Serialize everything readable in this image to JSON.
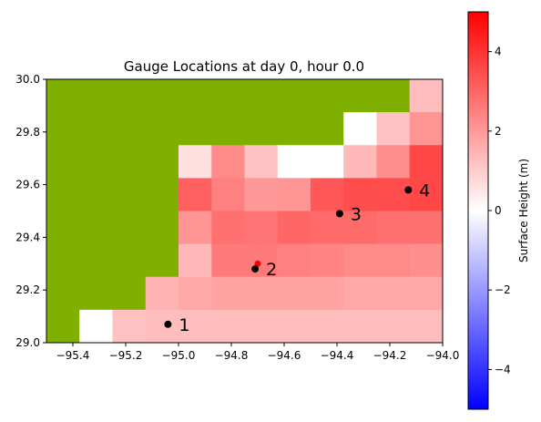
{
  "chart_data": {
    "type": "heatmap",
    "title": "Gauge Locations at day   0, hour 0.0",
    "xlim": [
      -95.5,
      -94.0
    ],
    "ylim": [
      29.0,
      30.0
    ],
    "xticks": [
      -95.4,
      -95.2,
      -95.0,
      -94.8,
      -94.6,
      -94.4,
      -94.2,
      -94.0
    ],
    "xtick_labels": [
      "−95.4",
      "−95.2",
      "−95.0",
      "−94.8",
      "−94.6",
      "−94.4",
      "−94.2",
      "−94.0"
    ],
    "yticks": [
      29.0,
      29.2,
      29.4,
      29.6,
      29.8,
      30.0
    ],
    "ytick_labels": [
      "29.0",
      "29.2",
      "29.4",
      "29.6",
      "29.8",
      "30.0"
    ],
    "grid": false,
    "land_color": "#7fb000",
    "cell_size_deg": 0.125,
    "grid_rows_note": "rows listed top (y 29.875-30.0) to bottom (y 29.0-29.125); columns west to east; null = land",
    "surface_height_grid": [
      [
        null,
        null,
        null,
        null,
        null,
        null,
        null,
        null,
        null,
        null,
        null,
        1.3
      ],
      [
        null,
        null,
        null,
        null,
        null,
        null,
        null,
        null,
        null,
        0.0,
        1.2,
        2.1
      ],
      [
        null,
        null,
        null,
        null,
        0.6,
        2.3,
        1.2,
        0.0,
        0.0,
        1.4,
        2.2,
        3.6
      ],
      [
        null,
        null,
        null,
        null,
        3.1,
        2.5,
        2.0,
        2.1,
        3.3,
        3.5,
        3.5,
        3.6
      ],
      [
        null,
        null,
        null,
        null,
        2.1,
        2.8,
        2.7,
        3.0,
        2.9,
        2.9,
        2.8,
        2.8
      ],
      [
        null,
        null,
        null,
        null,
        1.4,
        2.6,
        2.6,
        2.5,
        2.4,
        2.3,
        2.3,
        2.2
      ],
      [
        null,
        null,
        null,
        1.5,
        1.7,
        1.8,
        1.8,
        1.8,
        1.8,
        1.7,
        1.7,
        1.7
      ],
      [
        null,
        0.0,
        1.2,
        1.3,
        1.3,
        1.3,
        1.3,
        1.3,
        1.3,
        1.3,
        1.3,
        1.3
      ]
    ],
    "gauges": [
      {
        "id": "1",
        "x": -95.04,
        "y": 29.07
      },
      {
        "id": "2",
        "x": -94.71,
        "y": 29.28
      },
      {
        "id": "3",
        "x": -94.39,
        "y": 29.49
      },
      {
        "id": "4",
        "x": -94.13,
        "y": 29.58
      }
    ],
    "extra_marker": {
      "x": -94.7,
      "y": 29.3,
      "color": "#ff0000"
    },
    "gauge_marker_color": "#000000",
    "colorbar": {
      "label": "Surface Height (m)",
      "range": [
        -5,
        5
      ],
      "ticks": [
        -4,
        -2,
        0,
        2,
        4
      ],
      "tick_labels": [
        "−4",
        "−2",
        "0",
        "2",
        "4"
      ],
      "colors": [
        "#0000ff",
        "#ffffff",
        "#ff0000"
      ]
    }
  }
}
